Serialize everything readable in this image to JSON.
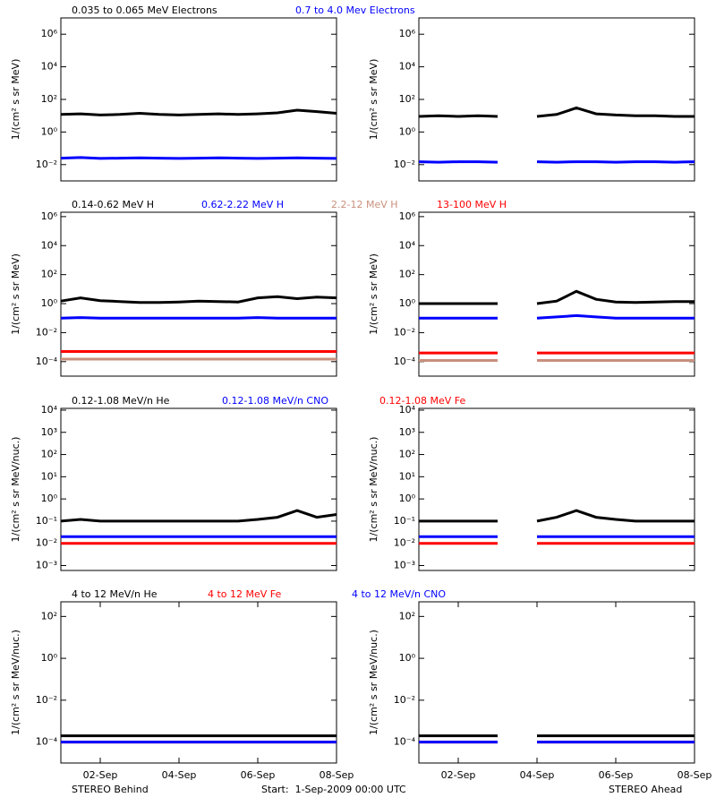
{
  "chart_data": [
    {
      "type": "line",
      "ylabel": "1/(cm² s sr MeV)",
      "log_y": true,
      "xlim": [
        1,
        8
      ],
      "ylim": [
        0.001,
        10000000
      ],
      "yticks": [
        {
          "value": 0.01,
          "label": "10⁻²"
        },
        {
          "value": 1,
          "label": "10⁰"
        },
        {
          "value": 100,
          "label": "10²"
        },
        {
          "value": 10000,
          "label": "10⁴"
        },
        {
          "value": 1000000,
          "label": "10⁶"
        }
      ],
      "x": [
        1,
        1.5,
        2,
        2.5,
        3,
        3.5,
        4,
        4.5,
        5,
        5.5,
        6,
        6.5,
        7,
        7.5,
        8
      ],
      "series": [
        {
          "name": "0.035 to 0.065 MeV Electrons",
          "color": "#000000",
          "values": [
            12,
            13,
            11,
            12,
            14,
            12,
            11,
            12,
            13,
            12,
            13,
            15,
            22,
            18,
            14
          ]
        },
        {
          "name": "0.7 to 4.0 Mev Electrons",
          "color": "#0000ff",
          "values": [
            0.025,
            0.027,
            0.024,
            0.025,
            0.026,
            0.025,
            0.024,
            0.025,
            0.026,
            0.025,
            0.024,
            0.025,
            0.026,
            0.025,
            0.024
          ]
        }
      ]
    },
    {
      "type": "line",
      "ylabel": "1/(cm² s sr MeV)",
      "log_y": true,
      "xlim": [
        1,
        8
      ],
      "ylim": [
        0.001,
        10000000
      ],
      "yticks": [
        {
          "value": 0.01,
          "label": "10⁻²"
        },
        {
          "value": 1,
          "label": "10⁰"
        },
        {
          "value": 100,
          "label": "10²"
        },
        {
          "value": 10000,
          "label": "10⁴"
        },
        {
          "value": 1000000,
          "label": "10⁶"
        }
      ],
      "x": [
        1,
        1.5,
        2,
        2.5,
        3,
        3.5,
        4,
        4.5,
        5,
        5.5,
        6,
        6.5,
        7,
        7.5,
        8
      ],
      "series": [
        {
          "color": "#000000",
          "values": [
            9,
            10,
            9,
            10,
            9,
            null,
            9,
            12,
            30,
            13,
            11,
            10,
            10,
            9,
            9
          ]
        },
        {
          "color": "#0000ff",
          "values": [
            0.015,
            0.014,
            0.015,
            0.015,
            0.014,
            null,
            0.015,
            0.014,
            0.015,
            0.015,
            0.014,
            0.015,
            0.015,
            0.014,
            0.015
          ]
        }
      ]
    },
    {
      "type": "line",
      "ylabel": "1/(cm² s sr MeV)",
      "log_y": true,
      "xlim": [
        1,
        8
      ],
      "ylim": [
        1e-05,
        2000000
      ],
      "yticks": [
        {
          "value": 0.0001,
          "label": "10⁻⁴"
        },
        {
          "value": 0.01,
          "label": "10⁻²"
        },
        {
          "value": 1,
          "label": "10⁰"
        },
        {
          "value": 100,
          "label": "10²"
        },
        {
          "value": 10000,
          "label": "10⁴"
        },
        {
          "value": 1000000,
          "label": "10⁶"
        }
      ],
      "x": [
        1,
        1.5,
        2,
        2.5,
        3,
        3.5,
        4,
        4.5,
        5,
        5.5,
        6,
        6.5,
        7,
        7.5,
        8
      ],
      "series": [
        {
          "name": "0.14-0.62 MeV H",
          "color": "#000000",
          "values": [
            1.5,
            2.5,
            1.6,
            1.4,
            1.2,
            1.2,
            1.3,
            1.5,
            1.4,
            1.3,
            2.5,
            3,
            2.2,
            2.8,
            2.5
          ]
        },
        {
          "name": "0.62-2.22 MeV H",
          "color": "#0000ff",
          "values": [
            0.1,
            0.11,
            0.1,
            0.1,
            0.1,
            0.1,
            0.1,
            0.1,
            0.1,
            0.1,
            0.11,
            0.1,
            0.1,
            0.1,
            0.1
          ]
        },
        {
          "name": "2.2-12 MeV H",
          "color": "#c8907c",
          "values": [
            0.00015,
            0.00015,
            0.00015,
            0.00015,
            0.00015,
            0.00015,
            0.00015,
            0.00015,
            0.00015,
            0.00015,
            0.00015,
            0.00015,
            0.00015,
            0.00015,
            0.00015
          ]
        },
        {
          "name": "13-100 MeV H",
          "color": "#ff0000",
          "values": [
            0.0005,
            0.0005,
            0.0005,
            0.0005,
            0.0005,
            0.0005,
            0.0005,
            0.0005,
            0.0005,
            0.0005,
            0.0005,
            0.0005,
            0.0005,
            0.0005,
            0.0005
          ]
        }
      ]
    },
    {
      "type": "line",
      "ylabel": "1/(cm² s sr MeV)",
      "log_y": true,
      "xlim": [
        1,
        8
      ],
      "ylim": [
        1e-05,
        2000000
      ],
      "yticks": [
        {
          "value": 0.0001,
          "label": "10⁻⁴"
        },
        {
          "value": 0.01,
          "label": "10⁻²"
        },
        {
          "value": 1,
          "label": "10⁰"
        },
        {
          "value": 100,
          "label": "10²"
        },
        {
          "value": 10000,
          "label": "10⁴"
        },
        {
          "value": 1000000,
          "label": "10⁶"
        }
      ],
      "x": [
        1,
        1.5,
        2,
        2.5,
        3,
        3.5,
        4,
        4.5,
        5,
        5.5,
        6,
        6.5,
        7,
        7.5,
        8
      ],
      "series": [
        {
          "color": "#000000",
          "values": [
            1,
            1,
            1,
            1,
            1,
            null,
            1,
            1.5,
            7,
            2,
            1.3,
            1.2,
            1.3,
            1.4,
            1.4
          ]
        },
        {
          "color": "#0000ff",
          "values": [
            0.1,
            0.1,
            0.1,
            0.1,
            0.1,
            null,
            0.1,
            0.12,
            0.15,
            0.12,
            0.1,
            0.1,
            0.1,
            0.1,
            0.1
          ]
        },
        {
          "color": "#c8907c",
          "values": [
            0.00012,
            0.00012,
            0.00012,
            0.00012,
            0.00012,
            null,
            0.00012,
            0.00012,
            0.00012,
            0.00012,
            0.00012,
            0.00012,
            0.00012,
            0.00012,
            0.00012
          ]
        },
        {
          "color": "#ff0000",
          "values": [
            0.0004,
            0.0004,
            0.0004,
            0.0004,
            0.0004,
            null,
            0.0004,
            0.0004,
            0.0004,
            0.0004,
            0.0004,
            0.0004,
            0.0004,
            0.0004,
            0.0004
          ]
        }
      ]
    },
    {
      "type": "line",
      "ylabel": "1/(cm² s sr MeV/nuc.)",
      "log_y": true,
      "xlim": [
        1,
        8
      ],
      "ylim": [
        0.0006,
        12000
      ],
      "yticks": [
        {
          "value": 0.001,
          "label": "10⁻³"
        },
        {
          "value": 0.01,
          "label": "10⁻²"
        },
        {
          "value": 0.1,
          "label": "10⁻¹"
        },
        {
          "value": 1,
          "label": "10⁰"
        },
        {
          "value": 10,
          "label": "10¹"
        },
        {
          "value": 100,
          "label": "10²"
        },
        {
          "value": 1000,
          "label": "10³"
        },
        {
          "value": 10000,
          "label": "10⁴"
        }
      ],
      "x": [
        1,
        1.5,
        2,
        2.5,
        3,
        3.5,
        4,
        4.5,
        5,
        5.5,
        6,
        6.5,
        7,
        7.5,
        8
      ],
      "series": [
        {
          "name": "0.12-1.08 MeV/n He",
          "color": "#000000",
          "values": [
            0.1,
            0.12,
            0.1,
            0.1,
            0.1,
            0.1,
            0.1,
            0.1,
            0.1,
            0.1,
            0.12,
            0.15,
            0.3,
            0.15,
            0.2
          ]
        },
        {
          "name": "0.12-1.08 MeV/n CNO",
          "color": "#0000ff",
          "values": [
            0.02,
            0.02,
            0.02,
            0.02,
            0.02,
            0.02,
            0.02,
            0.02,
            0.02,
            0.02,
            0.02,
            0.02,
            0.02,
            0.02,
            0.02
          ]
        },
        {
          "name": "0.12-1.08 MeV Fe",
          "color": "#ff0000",
          "values": [
            0.01,
            0.01,
            0.01,
            0.01,
            0.01,
            0.01,
            0.01,
            0.01,
            0.01,
            0.01,
            0.01,
            0.01,
            0.01,
            0.01,
            0.01
          ]
        }
      ]
    },
    {
      "type": "line",
      "ylabel": "1/(cm² s sr MeV/nuc.)",
      "log_y": true,
      "xlim": [
        1,
        8
      ],
      "ylim": [
        0.0006,
        12000
      ],
      "yticks": [
        {
          "value": 0.001,
          "label": "10⁻³"
        },
        {
          "value": 0.01,
          "label": "10⁻²"
        },
        {
          "value": 0.1,
          "label": "10⁻¹"
        },
        {
          "value": 1,
          "label": "10⁰"
        },
        {
          "value": 10,
          "label": "10¹"
        },
        {
          "value": 100,
          "label": "10²"
        },
        {
          "value": 1000,
          "label": "10³"
        },
        {
          "value": 10000,
          "label": "10⁴"
        }
      ],
      "x": [
        1,
        1.5,
        2,
        2.5,
        3,
        3.5,
        4,
        4.5,
        5,
        5.5,
        6,
        6.5,
        7,
        7.5,
        8
      ],
      "series": [
        {
          "color": "#000000",
          "values": [
            0.1,
            0.1,
            0.1,
            0.1,
            0.1,
            null,
            0.1,
            0.15,
            0.3,
            0.15,
            0.12,
            0.1,
            0.1,
            0.1,
            0.1
          ]
        },
        {
          "color": "#0000ff",
          "values": [
            0.02,
            0.02,
            0.02,
            0.02,
            0.02,
            null,
            0.02,
            0.02,
            0.02,
            0.02,
            0.02,
            0.02,
            0.02,
            0.02,
            0.02
          ]
        },
        {
          "color": "#ff0000",
          "values": [
            0.01,
            0.01,
            0.01,
            0.01,
            0.01,
            null,
            0.01,
            0.01,
            0.01,
            0.01,
            0.01,
            0.01,
            0.01,
            0.01,
            0.01
          ]
        }
      ]
    },
    {
      "type": "line",
      "ylabel": "1/(cm² s sr MeV/nuc.)",
      "log_y": true,
      "xlim": [
        1,
        8
      ],
      "ylim": [
        1e-05,
        500
      ],
      "yticks": [
        {
          "value": 0.0001,
          "label": "10⁻⁴"
        },
        {
          "value": 0.01,
          "label": "10⁻²"
        },
        {
          "value": 1,
          "label": "10⁰"
        },
        {
          "value": 100,
          "label": "10²"
        }
      ],
      "xticks": [
        {
          "value": 2,
          "label": "02-Sep"
        },
        {
          "value": 4,
          "label": "04-Sep"
        },
        {
          "value": 6,
          "label": "06-Sep"
        },
        {
          "value": 8,
          "label": "08-Sep"
        }
      ],
      "x": [
        1,
        1.5,
        2,
        2.5,
        3,
        3.5,
        4,
        4.5,
        5,
        5.5,
        6,
        6.5,
        7,
        7.5,
        8
      ],
      "series": [
        {
          "name": "4 to 12 MeV/n He",
          "color": "#000000",
          "values": [
            0.0002,
            0.0002,
            0.0002,
            0.0002,
            0.0002,
            0.0002,
            0.0002,
            0.0002,
            0.0002,
            0.0002,
            0.0002,
            0.0002,
            0.0002,
            0.0002,
            0.0002
          ]
        },
        {
          "name": "4 to 12 MeV Fe",
          "color": "#ff0000",
          "values": [
            0.0001,
            0.0001,
            0.0001,
            0.0001,
            0.0001,
            0.0001,
            0.0001,
            0.0001,
            0.0001,
            0.0001,
            0.0001,
            0.0001,
            0.0001,
            0.0001,
            0.0001
          ]
        },
        {
          "name": "4 to 12 MeV/n CNO",
          "color": "#0000ff",
          "values": [
            0.0001,
            0.0001,
            0.0001,
            0.0001,
            0.0001,
            0.0001,
            0.0001,
            0.0001,
            0.0001,
            0.0001,
            0.0001,
            0.0001,
            0.0001,
            0.0001,
            0.0001
          ]
        }
      ]
    },
    {
      "type": "line",
      "ylabel": "1/(cm² s sr MeV/nuc.)",
      "log_y": true,
      "xlim": [
        1,
        8
      ],
      "ylim": [
        1e-05,
        500
      ],
      "yticks": [
        {
          "value": 0.0001,
          "label": "10⁻⁴"
        },
        {
          "value": 0.01,
          "label": "10⁻²"
        },
        {
          "value": 1,
          "label": "10⁰"
        },
        {
          "value": 100,
          "label": "10²"
        }
      ],
      "xticks": [
        {
          "value": 2,
          "label": "02-Sep"
        },
        {
          "value": 4,
          "label": "04-Sep"
        },
        {
          "value": 6,
          "label": "06-Sep"
        },
        {
          "value": 8,
          "label": "08-Sep"
        }
      ],
      "x": [
        1,
        1.5,
        2,
        2.5,
        3,
        3.5,
        4,
        4.5,
        5,
        5.5,
        6,
        6.5,
        7,
        7.5,
        8
      ],
      "series": [
        {
          "color": "#000000",
          "values": [
            0.0002,
            0.0002,
            0.0002,
            0.0002,
            0.0002,
            null,
            0.0002,
            0.0002,
            0.0002,
            0.0002,
            0.0002,
            0.0002,
            0.0002,
            0.0002,
            0.0002
          ]
        },
        {
          "color": "#ff0000",
          "values": [
            0.0001,
            0.0001,
            0.0001,
            0.0001,
            0.0001,
            null,
            0.0001,
            0.0001,
            0.0001,
            0.0001,
            0.0001,
            0.0001,
            0.0001,
            0.0001,
            0.0001
          ]
        },
        {
          "color": "#0000ff",
          "values": [
            0.0001,
            0.0001,
            0.0001,
            0.0001,
            0.0001,
            null,
            0.0001,
            0.0001,
            0.0001,
            0.0001,
            0.0001,
            0.0001,
            0.0001,
            0.0001,
            0.0001
          ]
        }
      ]
    }
  ],
  "footer": {
    "left": "STEREO Behind",
    "center": "Start:  1-Sep-2009 00:00 UTC",
    "right": "STEREO Ahead"
  }
}
